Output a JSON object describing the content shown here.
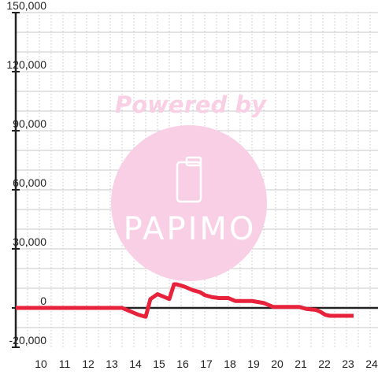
{
  "chart_data": {
    "type": "line",
    "title": "",
    "xlabel": "",
    "ylabel": "",
    "xlim": [
      9.0,
      24.5
    ],
    "ylim": [
      -20000,
      150000
    ],
    "x_ticks": [
      10,
      11,
      12,
      13,
      14,
      15,
      16,
      17,
      18,
      19,
      20,
      21,
      22,
      23,
      24
    ],
    "x_tick_labels": [
      "10",
      "11",
      "12",
      "13",
      "14",
      "15",
      "16",
      "17",
      "18",
      "19",
      "20",
      "21",
      "22",
      "23",
      "24"
    ],
    "y_ticks": [
      150000,
      120000,
      90000,
      60000,
      30000,
      0,
      -20000
    ],
    "y_tick_labels": [
      "150,000",
      "120,000",
      "90,000",
      "60,000",
      "30,000",
      "0",
      "-20,000"
    ],
    "grid": true,
    "colors": {
      "series": "#e8223a",
      "grid": "#c8c8c8",
      "axis": "#222222",
      "watermark": "#f9cfe6"
    },
    "series": [
      {
        "x": [
          9.0,
          13.5,
          13.8,
          14.2,
          14.5,
          14.7,
          15.0,
          15.3,
          15.5,
          15.7,
          15.8,
          16.1,
          16.5,
          16.8,
          17.0,
          17.3,
          17.6,
          18.0,
          18.3,
          18.6,
          19.0,
          19.5,
          19.7,
          19.9,
          20.5,
          21.0,
          21.3,
          21.7,
          21.9,
          22.1,
          22.3,
          22.6,
          23.0,
          23.3
        ],
        "y": [
          0,
          0,
          -1500,
          -3500,
          -4500,
          4500,
          7000,
          5500,
          4500,
          12000,
          12000,
          11000,
          9000,
          8000,
          6500,
          5500,
          5000,
          5000,
          3500,
          3500,
          3500,
          2500,
          1500,
          500,
          500,
          500,
          -500,
          -1000,
          -2000,
          -3500,
          -4000,
          -4000,
          -4000,
          -4000
        ]
      }
    ]
  },
  "watermark": {
    "caption": "Powered by",
    "logo": "PAPIMO"
  }
}
